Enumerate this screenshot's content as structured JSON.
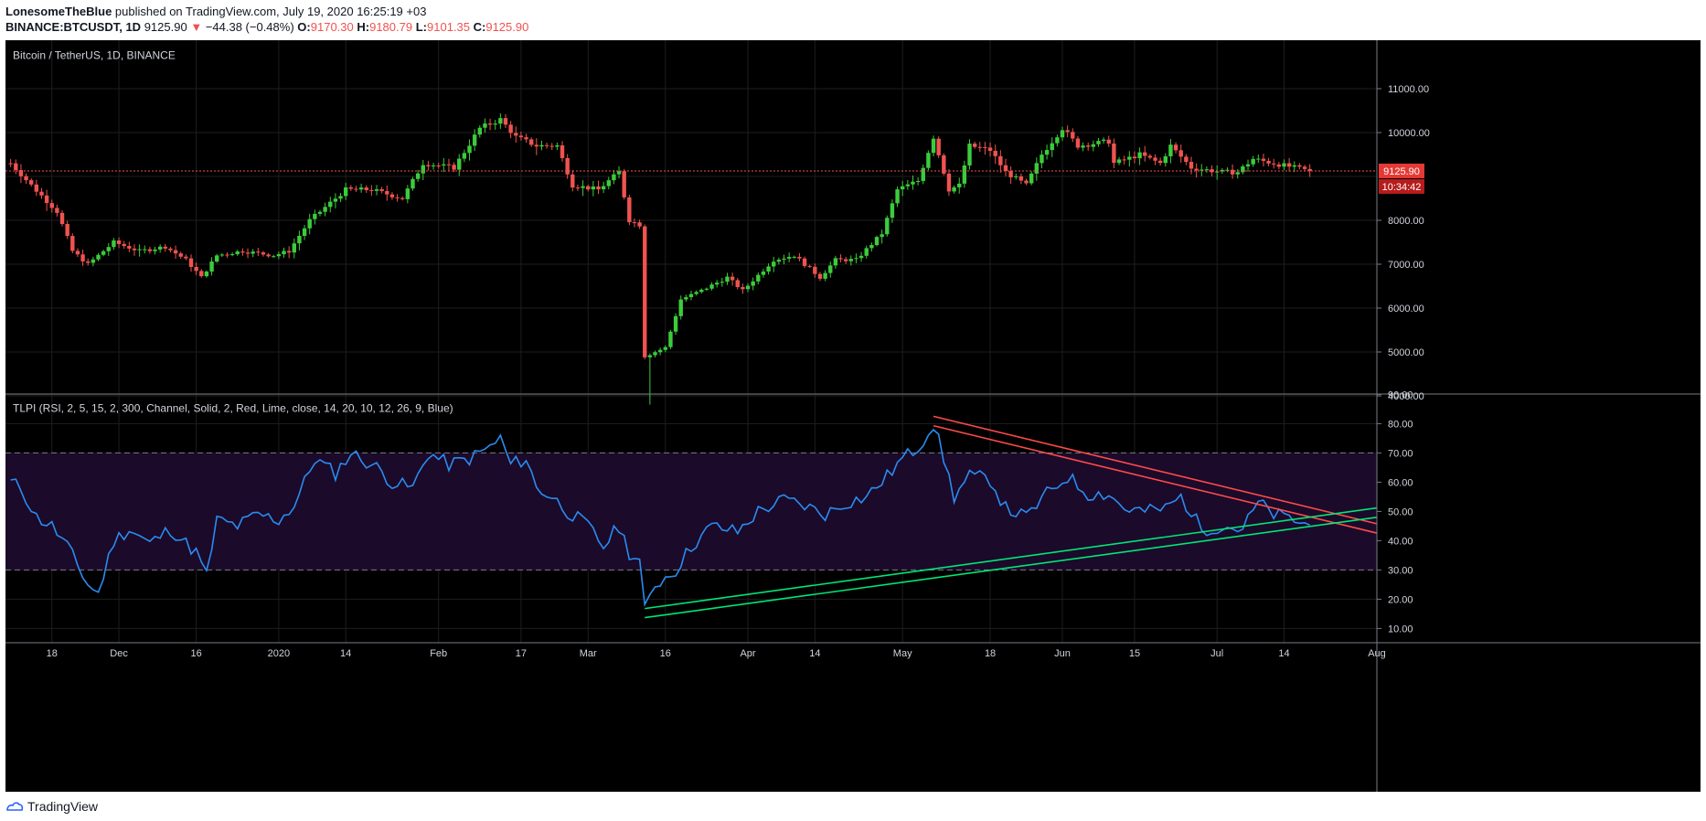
{
  "header": {
    "author": "LonesomeTheBlue",
    "published_text": "published on TradingView.com, July 19, 2020 16:25:19 +03",
    "symbol": "BINANCE:BTCUSDT, 1D",
    "last": "9125.90",
    "change_arrow": "▼",
    "change": "−44.38 (−0.48%)",
    "o_label": "O:",
    "o_val": "9170.30",
    "h_label": "H:",
    "h_val": "9180.79",
    "l_label": "L:",
    "l_val": "9101.35",
    "c_label": "C:",
    "c_val": "9125.90"
  },
  "footer": {
    "brand": "TradingView",
    "logo_icon": "tradingview-logo-icon"
  },
  "colors": {
    "background": "#000000",
    "up": "#26a69a",
    "up_bright": "#3bcc3b",
    "down": "#ef5350",
    "rsi_line": "#2a8cf0",
    "trend_red": "#ff4a4a",
    "trend_lime": "#00e676",
    "band_fill": "#1b0a2a",
    "price_tag": "#e53935",
    "grid": "#1e1e1e"
  },
  "chart_data": [
    {
      "type": "candlestick",
      "title": "Bitcoin / TetherUS, 1D, BINANCE",
      "ylim": [
        3000,
        11000
      ],
      "yticks": [
        4000,
        5000,
        6000,
        7000,
        8000,
        9000,
        10000,
        11000
      ],
      "ytick_labels": [
        "4000.00",
        "5000.00",
        "6000.00",
        "7000.00",
        "8000.00",
        "",
        "10000.00",
        "11000.00"
      ],
      "x_labels": [
        "18",
        "Dec",
        "16",
        "2020",
        "14",
        "Feb",
        "17",
        "Mar",
        "16",
        "Apr",
        "14",
        "May",
        "18",
        "Jun",
        "15",
        "Jul",
        "14",
        "Aug"
      ],
      "anchors": [
        [
          "2019-11-10",
          9300
        ],
        [
          "2019-11-14",
          8800
        ],
        [
          "2019-11-19",
          8200
        ],
        [
          "2019-11-22",
          7300
        ],
        [
          "2019-11-25",
          7000
        ],
        [
          "2019-11-30",
          7500
        ],
        [
          "2019-12-05",
          7300
        ],
        [
          "2019-12-10",
          7400
        ],
        [
          "2019-12-14",
          7100
        ],
        [
          "2019-12-17",
          6700
        ],
        [
          "2019-12-20",
          7200
        ],
        [
          "2019-12-25",
          7300
        ],
        [
          "2019-12-31",
          7200
        ],
        [
          "2020-01-03",
          7300
        ],
        [
          "2020-01-07",
          8000
        ],
        [
          "2020-01-14",
          8700
        ],
        [
          "2020-01-19",
          8700
        ],
        [
          "2020-01-25",
          8500
        ],
        [
          "2020-01-29",
          9300
        ],
        [
          "2020-02-04",
          9200
        ],
        [
          "2020-02-09",
          10100
        ],
        [
          "2020-02-13",
          10300
        ],
        [
          "2020-02-16",
          9900
        ],
        [
          "2020-02-20",
          9700
        ],
        [
          "2020-02-24",
          9700
        ],
        [
          "2020-02-27",
          8800
        ],
        [
          "2020-03-03",
          8700
        ],
        [
          "2020-03-07",
          9100
        ],
        [
          "2020-03-09",
          8000
        ],
        [
          "2020-03-11",
          7900
        ],
        [
          "2020-03-12",
          4900
        ],
        [
          "2020-03-16",
          5100
        ],
        [
          "2020-03-19",
          6200
        ],
        [
          "2020-03-23",
          6400
        ],
        [
          "2020-03-28",
          6700
        ],
        [
          "2020-03-31",
          6400
        ],
        [
          "2020-04-06",
          7100
        ],
        [
          "2020-04-10",
          7200
        ],
        [
          "2020-04-15",
          6700
        ],
        [
          "2020-04-18",
          7100
        ],
        [
          "2020-04-22",
          7100
        ],
        [
          "2020-04-27",
          7700
        ],
        [
          "2020-04-30",
          8700
        ],
        [
          "2020-05-04",
          8900
        ],
        [
          "2020-05-07",
          9900
        ],
        [
          "2020-05-10",
          8700
        ],
        [
          "2020-05-12",
          8800
        ],
        [
          "2020-05-14",
          9700
        ],
        [
          "2020-05-18",
          9600
        ],
        [
          "2020-05-21",
          9100
        ],
        [
          "2020-05-25",
          8800
        ],
        [
          "2020-05-28",
          9500
        ],
        [
          "2020-06-01",
          10100
        ],
        [
          "2020-06-04",
          9700
        ],
        [
          "2020-06-10",
          9800
        ],
        [
          "2020-06-11",
          9300
        ],
        [
          "2020-06-16",
          9500
        ],
        [
          "2020-06-20",
          9300
        ],
        [
          "2020-06-22",
          9700
        ],
        [
          "2020-06-26",
          9200
        ],
        [
          "2020-07-02",
          9100
        ],
        [
          "2020-07-05",
          9100
        ],
        [
          "2020-07-08",
          9400
        ],
        [
          "2020-07-14",
          9250
        ],
        [
          "2020-07-19",
          9125.9
        ]
      ],
      "current_price": 9125.9,
      "price_label": "9125.90",
      "countdown_label": "10:34:42"
    },
    {
      "type": "line",
      "title": "TLPI (RSI, 2, 5, 15, 2, 300, Channel, Solid, 2, Red, Lime, close, 14, 20, 10, 12, 26, 9, Blue)",
      "ylim": [
        5,
        90
      ],
      "yticks": [
        10,
        20,
        30,
        40,
        50,
        60,
        70,
        80,
        90
      ],
      "ytick_labels": [
        "10.00",
        "20.00",
        "30.00",
        "40.00",
        "50.00",
        "60.00",
        "70.00",
        "80.00",
        "90.00"
      ],
      "band": [
        30,
        70
      ],
      "rsi_anchors": [
        [
          "2019-11-10",
          60
        ],
        [
          "2019-11-12",
          58
        ],
        [
          "2019-11-15",
          48
        ],
        [
          "2019-11-18",
          45
        ],
        [
          "2019-11-21",
          38
        ],
        [
          "2019-11-25",
          25
        ],
        [
          "2019-11-27",
          22
        ],
        [
          "2019-11-30",
          40
        ],
        [
          "2019-12-03",
          44
        ],
        [
          "2019-12-07",
          39
        ],
        [
          "2019-12-11",
          44
        ],
        [
          "2019-12-14",
          39
        ],
        [
          "2019-12-16",
          36
        ],
        [
          "2019-12-18",
          28
        ],
        [
          "2019-12-20",
          47
        ],
        [
          "2019-12-24",
          45
        ],
        [
          "2019-12-28",
          49
        ],
        [
          "2020-01-01",
          47
        ],
        [
          "2020-01-04",
          52
        ],
        [
          "2020-01-08",
          68
        ],
        [
          "2020-01-12",
          63
        ],
        [
          "2020-01-15",
          70
        ],
        [
          "2020-01-20",
          65
        ],
        [
          "2020-01-23",
          60
        ],
        [
          "2020-01-27",
          58
        ],
        [
          "2020-01-30",
          70
        ],
        [
          "2020-02-03",
          66
        ],
        [
          "2020-02-07",
          68
        ],
        [
          "2020-02-11",
          72
        ],
        [
          "2020-02-13",
          75
        ],
        [
          "2020-02-15",
          66
        ],
        [
          "2020-02-18",
          68
        ],
        [
          "2020-02-20",
          58
        ],
        [
          "2020-02-23",
          55
        ],
        [
          "2020-02-26",
          50
        ],
        [
          "2020-03-01",
          45
        ],
        [
          "2020-03-04",
          38
        ],
        [
          "2020-03-07",
          45
        ],
        [
          "2020-03-09",
          36
        ],
        [
          "2020-03-11",
          33
        ],
        [
          "2020-03-12",
          16
        ],
        [
          "2020-03-14",
          25
        ],
        [
          "2020-03-18",
          30
        ],
        [
          "2020-03-21",
          38
        ],
        [
          "2020-03-25",
          45
        ],
        [
          "2020-03-30",
          43
        ],
        [
          "2020-04-03",
          50
        ],
        [
          "2020-04-08",
          54
        ],
        [
          "2020-04-12",
          52
        ],
        [
          "2020-04-16",
          49
        ],
        [
          "2020-04-20",
          53
        ],
        [
          "2020-04-24",
          55
        ],
        [
          "2020-04-28",
          62
        ],
        [
          "2020-05-01",
          68
        ],
        [
          "2020-05-04",
          72
        ],
        [
          "2020-05-07",
          80
        ],
        [
          "2020-05-09",
          68
        ],
        [
          "2020-05-11",
          55
        ],
        [
          "2020-05-14",
          62
        ],
        [
          "2020-05-18",
          61
        ],
        [
          "2020-05-21",
          51
        ],
        [
          "2020-05-25",
          48
        ],
        [
          "2020-05-29",
          56
        ],
        [
          "2020-06-02",
          62
        ],
        [
          "2020-06-06",
          56
        ],
        [
          "2020-06-10",
          56
        ],
        [
          "2020-06-13",
          51
        ],
        [
          "2020-06-17",
          50
        ],
        [
          "2020-06-21",
          51
        ],
        [
          "2020-06-24",
          55
        ],
        [
          "2020-06-28",
          44
        ],
        [
          "2020-07-02",
          45
        ],
        [
          "2020-07-06",
          44
        ],
        [
          "2020-07-09",
          53
        ],
        [
          "2020-07-12",
          49
        ],
        [
          "2020-07-16",
          47
        ],
        [
          "2020-07-19",
          45
        ]
      ],
      "trendlines_red": [
        [
          [
            "2020-05-07",
            82.5
          ],
          [
            "2020-08-01",
            45.8
          ]
        ],
        [
          [
            "2020-05-07",
            79.3
          ],
          [
            "2020-08-01",
            42.6
          ]
        ]
      ],
      "trendlines_lime": [
        [
          [
            "2020-03-12",
            16.8
          ],
          [
            "2020-08-01",
            51.2
          ]
        ],
        [
          [
            "2020-03-12",
            13.7
          ],
          [
            "2020-08-01",
            48.0
          ]
        ]
      ]
    }
  ]
}
